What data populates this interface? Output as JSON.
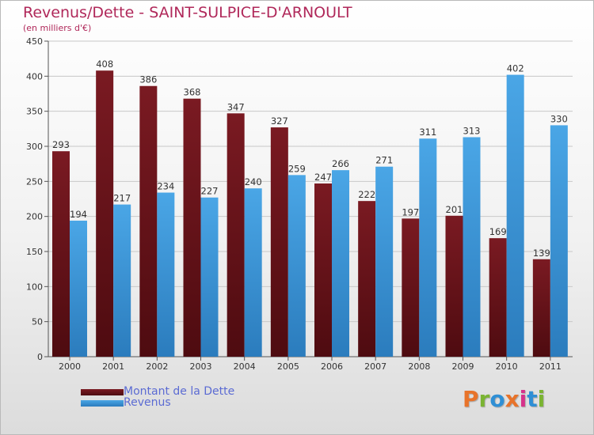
{
  "title": "Revenus/Dette - SAINT-SULPICE-D'ARNOULT",
  "subtitle": "(en milliers d'€)",
  "logo": {
    "text": "Proxiti",
    "colors": [
      "#e8732a",
      "#7ab432",
      "#2f8fd5",
      "#e8732a",
      "#d6338b",
      "#2f8fd5",
      "#7ab432"
    ]
  },
  "colors": {
    "dette": "#7a1a22",
    "dette_dark": "#4e0b10",
    "revenus": "#4aa6e6",
    "revenus_dark": "#2b7cbd",
    "axis_text": "#333333",
    "grid": "#c8c8c8"
  },
  "legend": [
    {
      "label": "Montant de la Dette"
    },
    {
      "label": "Revenus"
    }
  ],
  "chart_data": {
    "type": "bar",
    "title": "Revenus/Dette - SAINT-SULPICE-D'ARNOULT",
    "ylabel": "(en milliers d'€)",
    "ylim": [
      0,
      450
    ],
    "yticks": [
      0,
      50,
      100,
      150,
      200,
      250,
      300,
      350,
      400,
      450
    ],
    "grid": true,
    "legend_position": "bottom-left",
    "categories": [
      "2000",
      "2001",
      "2002",
      "2003",
      "2004",
      "2005",
      "2006",
      "2007",
      "2008",
      "2009",
      "2010",
      "2011"
    ],
    "series": [
      {
        "name": "Montant de la Dette",
        "values": [
          293,
          408,
          386,
          368,
          347,
          327,
          247,
          222,
          197,
          201,
          169,
          139
        ]
      },
      {
        "name": "Revenus",
        "values": [
          194,
          217,
          234,
          227,
          240,
          259,
          266,
          271,
          311,
          313,
          402,
          330
        ]
      }
    ]
  }
}
